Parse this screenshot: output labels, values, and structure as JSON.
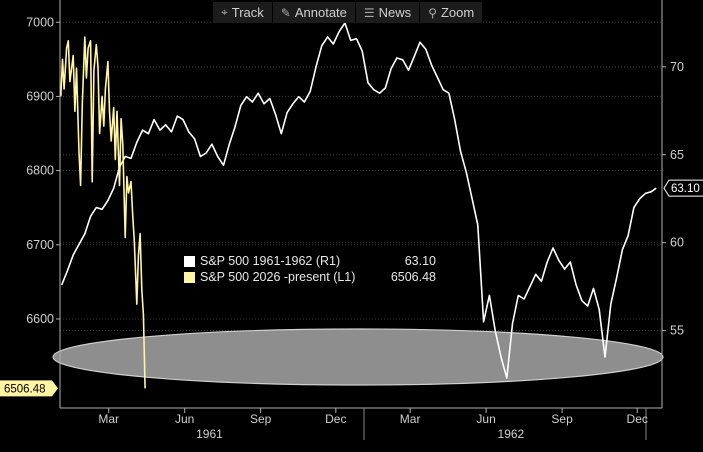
{
  "toolbar": {
    "track": {
      "label": "Track",
      "icon": "crosshair-icon"
    },
    "annotate": {
      "label": "Annotate",
      "icon": "pencil-icon"
    },
    "news": {
      "label": "News",
      "icon": "news-icon"
    },
    "zoom": {
      "label": "Zoom",
      "icon": "zoom-icon"
    }
  },
  "legend": [
    {
      "name": "S&P 500 1961-1962 (R1)",
      "value": "63.10",
      "color": "#ffffff"
    },
    {
      "name": "S&P 500 2026 -present  (L1)",
      "value": "6506.48",
      "color": "#fff5a3"
    }
  ],
  "chart_data": {
    "type": "line",
    "left_axis": {
      "ticks": [
        6600,
        6700,
        6800,
        6900,
        7000
      ],
      "range": [
        6480,
        7030
      ]
    },
    "right_axis": {
      "ticks": [
        55,
        60,
        65,
        70
      ],
      "range": [
        50.6,
        73.8
      ]
    },
    "x_axis": {
      "range": [
        "1961-01-01",
        "1962-12-31"
      ],
      "ticks": [
        {
          "label": "Mar",
          "date": "1961-03-01"
        },
        {
          "label": "Jun",
          "date": "1961-06-01"
        },
        {
          "label": "Sep",
          "date": "1961-09-01"
        },
        {
          "label": "Dec",
          "date": "1961-12-01"
        },
        {
          "label": "Mar",
          "date": "1962-03-01"
        },
        {
          "label": "Jun",
          "date": "1962-06-01"
        },
        {
          "label": "Sep",
          "date": "1962-09-01"
        },
        {
          "label": "Dec",
          "date": "1962-12-01"
        }
      ],
      "years": [
        {
          "label": "1961",
          "date": "1961-07-01"
        },
        {
          "label": "1962",
          "date": "1962-07-01"
        }
      ]
    },
    "last_value_labels": {
      "right": "63.10",
      "left": "6506.48"
    },
    "series": [
      {
        "name": "S&P 500 1961-1962 (R1)",
        "axis": "right",
        "color": "#ffffff",
        "points": [
          [
            "1961-01-03",
            57.6
          ],
          [
            "1961-01-10",
            58.4
          ],
          [
            "1961-01-17",
            59.3
          ],
          [
            "1961-01-24",
            59.9
          ],
          [
            "1961-01-31",
            60.5
          ],
          [
            "1961-02-07",
            61.5
          ],
          [
            "1961-02-14",
            62.0
          ],
          [
            "1961-02-21",
            61.9
          ],
          [
            "1961-02-28",
            62.4
          ],
          [
            "1961-03-07",
            63.1
          ],
          [
            "1961-03-14",
            64.3
          ],
          [
            "1961-03-21",
            64.9
          ],
          [
            "1961-03-28",
            64.8
          ],
          [
            "1961-04-04",
            65.7
          ],
          [
            "1961-04-11",
            66.4
          ],
          [
            "1961-04-18",
            66.2
          ],
          [
            "1961-04-25",
            67.0
          ],
          [
            "1961-05-02",
            66.4
          ],
          [
            "1961-05-09",
            66.7
          ],
          [
            "1961-05-16",
            66.3
          ],
          [
            "1961-05-23",
            67.2
          ],
          [
            "1961-05-30",
            67.0
          ],
          [
            "1961-06-06",
            66.3
          ],
          [
            "1961-06-13",
            65.9
          ],
          [
            "1961-06-20",
            64.9
          ],
          [
            "1961-06-27",
            65.1
          ],
          [
            "1961-07-04",
            65.6
          ],
          [
            "1961-07-11",
            64.9
          ],
          [
            "1961-07-18",
            64.4
          ],
          [
            "1961-07-25",
            65.6
          ],
          [
            "1961-08-01",
            66.6
          ],
          [
            "1961-08-08",
            67.8
          ],
          [
            "1961-08-15",
            68.3
          ],
          [
            "1961-08-22",
            68.0
          ],
          [
            "1961-08-29",
            68.5
          ],
          [
            "1961-09-05",
            67.9
          ],
          [
            "1961-09-12",
            68.2
          ],
          [
            "1961-09-19",
            67.3
          ],
          [
            "1961-09-26",
            66.2
          ],
          [
            "1961-10-03",
            67.4
          ],
          [
            "1961-10-10",
            67.9
          ],
          [
            "1961-10-17",
            68.3
          ],
          [
            "1961-10-24",
            68.0
          ],
          [
            "1961-10-31",
            68.6
          ],
          [
            "1961-11-07",
            70.0
          ],
          [
            "1961-11-14",
            71.2
          ],
          [
            "1961-11-21",
            71.7
          ],
          [
            "1961-11-28",
            71.3
          ],
          [
            "1961-12-05",
            72.0
          ],
          [
            "1961-12-12",
            72.5
          ],
          [
            "1961-12-19",
            71.5
          ],
          [
            "1961-12-26",
            71.6
          ],
          [
            "1962-01-02",
            70.9
          ],
          [
            "1962-01-09",
            69.1
          ],
          [
            "1962-01-16",
            68.7
          ],
          [
            "1962-01-23",
            68.5
          ],
          [
            "1962-01-30",
            68.8
          ],
          [
            "1962-02-06",
            69.9
          ],
          [
            "1962-02-13",
            70.5
          ],
          [
            "1962-02-20",
            70.4
          ],
          [
            "1962-02-27",
            69.8
          ],
          [
            "1962-03-06",
            70.6
          ],
          [
            "1962-03-13",
            71.4
          ],
          [
            "1962-03-20",
            71.0
          ],
          [
            "1962-03-27",
            70.1
          ],
          [
            "1962-04-03",
            69.4
          ],
          [
            "1962-04-10",
            68.7
          ],
          [
            "1962-04-17",
            68.5
          ],
          [
            "1962-04-24",
            67.0
          ],
          [
            "1962-05-01",
            65.2
          ],
          [
            "1962-05-08",
            64.0
          ],
          [
            "1962-05-15",
            62.5
          ],
          [
            "1962-05-22",
            61.0
          ],
          [
            "1962-05-29",
            55.5
          ],
          [
            "1962-06-05",
            57.0
          ],
          [
            "1962-06-12",
            55.0
          ],
          [
            "1962-06-19",
            53.5
          ],
          [
            "1962-06-26",
            52.3
          ],
          [
            "1962-07-03",
            55.4
          ],
          [
            "1962-07-10",
            57.0
          ],
          [
            "1962-07-17",
            56.8
          ],
          [
            "1962-07-24",
            57.5
          ],
          [
            "1962-07-31",
            58.2
          ],
          [
            "1962-08-07",
            57.8
          ],
          [
            "1962-08-14",
            58.9
          ],
          [
            "1962-08-21",
            59.7
          ],
          [
            "1962-08-28",
            59.0
          ],
          [
            "1962-09-04",
            58.5
          ],
          [
            "1962-09-11",
            58.9
          ],
          [
            "1962-09-18",
            57.6
          ],
          [
            "1962-09-25",
            56.7
          ],
          [
            "1962-10-02",
            56.4
          ],
          [
            "1962-10-09",
            57.4
          ],
          [
            "1962-10-16",
            56.2
          ],
          [
            "1962-10-23",
            53.5
          ],
          [
            "1962-10-30",
            56.5
          ],
          [
            "1962-11-06",
            58.0
          ],
          [
            "1962-11-13",
            59.6
          ],
          [
            "1962-11-20",
            60.4
          ],
          [
            "1962-11-27",
            62.0
          ],
          [
            "1962-12-04",
            62.5
          ],
          [
            "1962-12-11",
            62.8
          ],
          [
            "1962-12-18",
            62.9
          ],
          [
            "1962-12-24",
            63.1
          ]
        ]
      },
      {
        "name": "S&P 500 2026 -present  (L1)",
        "axis": "left",
        "color": "#fff5a3",
        "points": [
          [
            "1961-01-02",
            6900
          ],
          [
            "1961-01-04",
            6950
          ],
          [
            "1961-01-06",
            6910
          ],
          [
            "1961-01-09",
            6965
          ],
          [
            "1961-01-11",
            6975
          ],
          [
            "1961-01-13",
            6920
          ],
          [
            "1961-01-17",
            6955
          ],
          [
            "1961-01-19",
            6880
          ],
          [
            "1961-01-21",
            6938
          ],
          [
            "1961-01-24",
            6825
          ],
          [
            "1961-01-26",
            6780
          ],
          [
            "1961-01-28",
            6890
          ],
          [
            "1961-01-31",
            6980
          ],
          [
            "1961-02-02",
            6925
          ],
          [
            "1961-02-04",
            6965
          ],
          [
            "1961-02-07",
            6975
          ],
          [
            "1961-02-09",
            6785
          ],
          [
            "1961-02-11",
            6935
          ],
          [
            "1961-02-14",
            6970
          ],
          [
            "1961-02-16",
            6940
          ],
          [
            "1961-02-18",
            6850
          ],
          [
            "1961-02-21",
            6900
          ],
          [
            "1961-02-23",
            6860
          ],
          [
            "1961-02-25",
            6910
          ],
          [
            "1961-02-28",
            6947
          ],
          [
            "1961-03-02",
            6880
          ],
          [
            "1961-03-04",
            6840
          ],
          [
            "1961-03-07",
            6885
          ],
          [
            "1961-03-09",
            6815
          ],
          [
            "1961-03-11",
            6880
          ],
          [
            "1961-03-14",
            6780
          ],
          [
            "1961-03-16",
            6870
          ],
          [
            "1961-03-18",
            6835
          ],
          [
            "1961-03-21",
            6710
          ],
          [
            "1961-03-23",
            6792
          ],
          [
            "1961-03-25",
            6770
          ],
          [
            "1961-03-28",
            6785
          ],
          [
            "1961-03-30",
            6740
          ],
          [
            "1961-04-01",
            6705
          ],
          [
            "1961-04-04",
            6620
          ],
          [
            "1961-04-06",
            6685
          ],
          [
            "1961-04-08",
            6715
          ],
          [
            "1961-04-10",
            6640
          ],
          [
            "1961-04-12",
            6606
          ],
          [
            "1961-04-14",
            6506.48
          ]
        ]
      }
    ]
  }
}
